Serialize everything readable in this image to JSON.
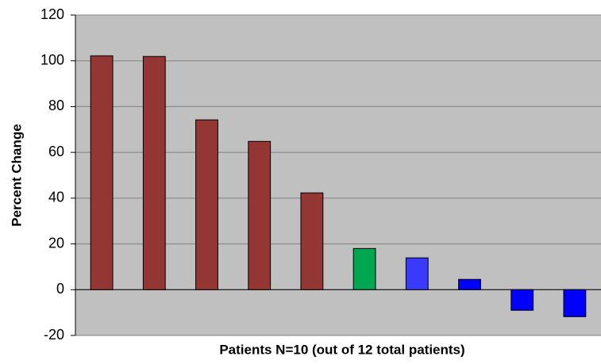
{
  "chart_data": {
    "type": "bar",
    "x_label": "Patients N=10 (out of 12 total patients)",
    "y_label": "Percent Change",
    "categories": [
      null,
      null,
      null,
      null,
      null,
      null,
      null,
      null,
      null,
      null
    ],
    "values": [
      102.2,
      101.9,
      74.2,
      64.8,
      42.3,
      18,
      13.9,
      4.5,
      -9,
      -11.8
    ],
    "colors": [
      "#943634",
      "#943634",
      "#943634",
      "#943634",
      "#943634",
      "#00a650",
      "#3a3aff",
      "#0000ff",
      "#0000ff",
      "#0000ff"
    ],
    "ylim": [
      -20,
      120
    ],
    "yticks": [
      -20,
      0,
      20,
      40,
      60,
      80,
      100,
      120
    ],
    "grid": true
  }
}
